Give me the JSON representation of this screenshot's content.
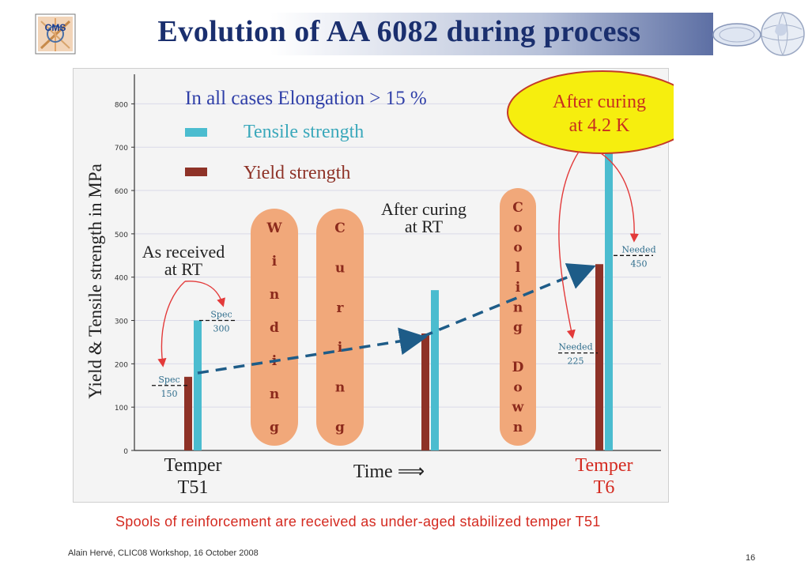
{
  "slide": {
    "title": "Evolution of AA 6082 during process",
    "caption": "Spools of reinforcement are received as under-aged stabilized temper T51",
    "footer": "Alain Hervé, CLIC08 Workshop,  16 October 2008",
    "page_number": "16",
    "logos": {
      "left": "CMS",
      "right": "lab-globe-logo"
    }
  },
  "colors": {
    "title": "#1a2f6e",
    "tensile": "#4bbccf",
    "yield": "#8e3227",
    "bubble_fill": "#f1a87a",
    "bubble_text": "#8c2a1c",
    "arrow": "#1e5c88",
    "annotation": "#e33a3a",
    "callout_fill": "#f6ee0e",
    "caption": "#d42a20"
  },
  "chart_data": {
    "type": "bar",
    "ylabel": "Yield & Tensile strength in MPa",
    "xlabel": "Time ⟹",
    "ylim": [
      0,
      850
    ],
    "yticks": [
      0,
      100,
      200,
      300,
      400,
      500,
      600,
      700,
      800
    ],
    "grid": true,
    "legend": {
      "heading": "In all cases Elongation > 15 %",
      "items": [
        "Tensile strength",
        "Yield strength"
      ]
    },
    "groups": [
      {
        "label": "As received at RT",
        "yield": 170,
        "tensile": 300
      },
      {
        "label": "After curing at RT",
        "yield": 270,
        "tensile": 370
      },
      {
        "label": "After curing at 4.2 K",
        "yield": 430,
        "tensile": 685
      }
    ],
    "x_labels": {
      "start": [
        "Temper",
        "T51"
      ],
      "end": [
        "Temper",
        "T6"
      ]
    },
    "thresholds": [
      {
        "title": "Spec",
        "value": 150,
        "label": "150"
      },
      {
        "title": "Spec",
        "value": 300,
        "label": "300"
      },
      {
        "title": "Needed",
        "value": 225,
        "label": "225"
      },
      {
        "title": "Needed",
        "value": 450,
        "label": "450"
      }
    ],
    "annotations": {
      "received": [
        "As received",
        "at RT"
      ],
      "curing_rt": [
        "After curing",
        "at RT"
      ],
      "curing_4k": [
        "After curing",
        "at 4.2 K"
      ]
    },
    "process_steps": [
      {
        "letters": [
          "W",
          "i",
          "n",
          "d",
          "i",
          "n",
          "g"
        ]
      },
      {
        "letters": [
          "C",
          "u",
          "r",
          "i",
          "n",
          "g"
        ]
      },
      {
        "letters": [
          "C",
          "o",
          "o",
          "l",
          "i",
          "n",
          "g",
          "",
          "D",
          "o",
          "w",
          "n"
        ]
      }
    ]
  }
}
